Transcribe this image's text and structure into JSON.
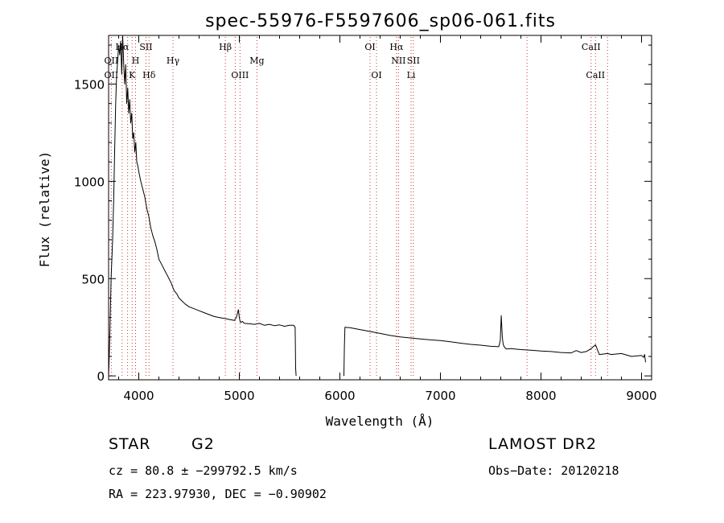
{
  "chart_data": {
    "type": "line",
    "title": "spec-55976-F5597606_sp06-061.fits",
    "xlabel": "Wavelength (Å)",
    "ylabel": "Flux (relative)",
    "xlim": [
      3700,
      9100
    ],
    "ylim": [
      -20,
      1750
    ],
    "xticks": [
      4000,
      5000,
      6000,
      7000,
      8000,
      9000
    ],
    "yticks": [
      0,
      500,
      1000,
      1500
    ],
    "grid": false,
    "series": [
      {
        "name": "flux",
        "segments": [
          {
            "x": [
              3700,
              3712,
              3725,
              3740,
              3750,
              3760,
              3770,
              3780,
              3790,
              3800,
              3810,
              3820,
              3830,
              3840,
              3850,
              3860,
              3870,
              3880,
              3890,
              3900,
              3910,
              3920,
              3930,
              3940,
              3950,
              3960,
              3970,
              3980,
              3990,
              4000,
              4020,
              4040,
              4060,
              4080,
              4100,
              4120,
              4140,
              4160,
              4180,
              4200,
              4230,
              4260,
              4290,
              4320,
              4350,
              4380,
              4400,
              4430,
              4460,
              4500,
              4550,
              4600,
              4650,
              4700,
              4750,
              4800,
              4850,
              4900,
              4950,
              4970,
              4990,
              5000,
              5010,
              5030,
              5050,
              5100,
              5150,
              5200,
              5250,
              5300,
              5350,
              5400,
              5450,
              5500,
              5540,
              5555,
              5560,
              5565
            ],
            "y": [
              0,
              200,
              500,
              700,
              900,
              1150,
              1400,
              1550,
              1620,
              1700,
              1650,
              1720,
              1550,
              1750,
              1600,
              1500,
              1600,
              1400,
              1480,
              1350,
              1420,
              1300,
              1350,
              1220,
              1250,
              1150,
              1200,
              1100,
              1080,
              1050,
              1000,
              960,
              920,
              860,
              820,
              760,
              720,
              690,
              650,
              600,
              570,
              540,
              510,
              480,
              440,
              420,
              400,
              385,
              370,
              355,
              345,
              335,
              325,
              315,
              305,
              300,
              295,
              290,
              285,
              300,
              340,
              300,
              275,
              280,
              270,
              268,
              265,
              270,
              260,
              265,
              258,
              262,
              255,
              260,
              260,
              250,
              40,
              0
            ]
          },
          {
            "x": [
              6040,
              6045,
              6050,
              6100,
              6200,
              6300,
              6400,
              6500,
              6600,
              6700,
              6800,
              6900,
              7000,
              7100,
              7200,
              7300,
              7400,
              7500,
              7580,
              7595,
              7605,
              7615,
              7625,
              7640,
              7660,
              7700,
              7800,
              7900,
              8000,
              8100,
              8200,
              8300,
              8350,
              8400,
              8450,
              8498,
              8542,
              8580,
              8662,
              8700,
              8800,
              8900,
              9000,
              9020,
              9030,
              9040
            ],
            "y": [
              0,
              150,
              250,
              248,
              238,
              228,
              218,
              208,
              200,
              195,
              190,
              185,
              182,
              175,
              168,
              162,
              158,
              152,
              150,
              180,
              310,
              200,
              160,
              145,
              138,
              140,
              135,
              132,
              128,
              125,
              120,
              118,
              130,
              120,
              125,
              140,
              160,
              110,
              115,
              110,
              115,
              100,
              105,
              95,
              110,
              70
            ]
          }
        ]
      }
    ],
    "lines_top": [
      {
        "label": "Hα",
        "x": 3835
      },
      {
        "label": "SII",
        "x": 4072
      },
      {
        "label": "Hβ",
        "x": 4861
      },
      {
        "label": "OI",
        "x": 6300
      },
      {
        "label": "Hα",
        "x": 6563
      },
      {
        "label": "CaII",
        "x": 8498
      }
    ],
    "lines_mid": [
      {
        "label": "OII",
        "x": 3727
      },
      {
        "label": "H",
        "x": 3968
      },
      {
        "label": "Hγ",
        "x": 4340
      },
      {
        "label": "Mg",
        "x": 5175
      },
      {
        "label": "NII",
        "x": 6583
      },
      {
        "label": "SII",
        "x": 6731
      }
    ],
    "lines_low": [
      {
        "label": "OII",
        "x": 3727
      },
      {
        "label": "K",
        "x": 3934
      },
      {
        "label": "Hδ",
        "x": 4102
      },
      {
        "label": "OIII",
        "x": 5007
      },
      {
        "label": "OI",
        "x": 6364
      },
      {
        "label": "Li",
        "x": 6708
      },
      {
        "label": "CaII",
        "x": 8542
      }
    ],
    "extra_markers": [
      3889,
      4959,
      8662,
      7861
    ]
  },
  "info": {
    "object_class": "STAR",
    "subclass": "G2",
    "survey": "LAMOST DR2",
    "cz": "cz = 80.8 ± −299792.5 km/s",
    "obs_date": "Obs−Date: 20120218",
    "radec": "RA = 223.97930, DEC =  −0.90902"
  }
}
